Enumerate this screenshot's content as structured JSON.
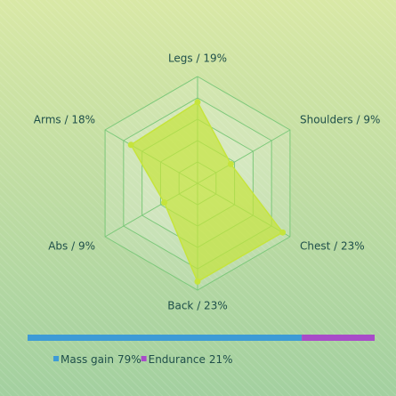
{
  "chart_data": [
    {
      "type": "radar",
      "categories": [
        "Legs / 19%",
        "Shoulders / 9%",
        "Chest / 23%",
        "Back / 23%",
        "Abs / 9%",
        "Arms / 18%"
      ],
      "values": [
        19,
        9,
        23,
        23,
        9,
        18
      ],
      "color": "#c5e43c",
      "ylim": [
        0,
        25
      ],
      "yticks": [
        5,
        10,
        15,
        20,
        25
      ],
      "grid": true
    },
    {
      "type": "stacked-bar",
      "series": [
        {
          "name": "Mass gain",
          "color": "#3d9bd6",
          "values": [
            79
          ],
          "value_labels": [
            "79%"
          ]
        },
        {
          "name": "Endurance",
          "color": "#a84bc9",
          "values": [
            21
          ],
          "value_labels": [
            "21%"
          ]
        }
      ]
    }
  ]
}
